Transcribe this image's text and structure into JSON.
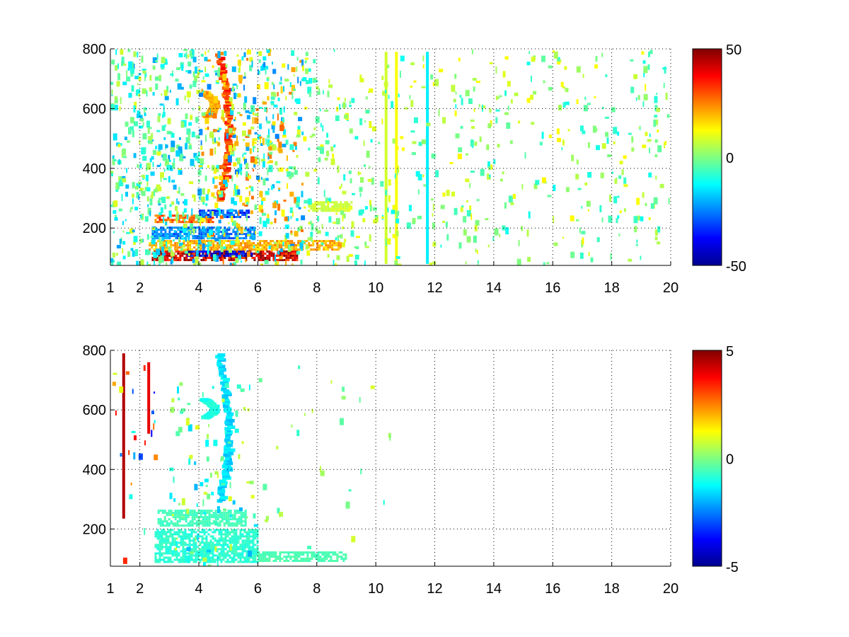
{
  "colors": {
    "background": "#ffffff",
    "colormap": "jet",
    "jet_stops": [
      "#00008f",
      "#0000ff",
      "#00ffff",
      "#ffff00",
      "#ff0000",
      "#800000"
    ],
    "grid": "#000000"
  },
  "chart_data": [
    {
      "type": "heatmap",
      "colormap": "jet",
      "title": "",
      "xlabel": "",
      "ylabel": "",
      "xlim": [
        1,
        20
      ],
      "ylim": [
        75,
        800
      ],
      "x_ticks": [
        1,
        2,
        4,
        6,
        8,
        10,
        12,
        14,
        16,
        18,
        20
      ],
      "x_tick_labels": [
        "1",
        "2",
        "4",
        "6",
        "8",
        "10",
        "12",
        "14",
        "16",
        "18",
        "20"
      ],
      "y_ticks": [
        200,
        400,
        600,
        800
      ],
      "y_tick_labels": [
        "200",
        "400",
        "600",
        "800"
      ],
      "grid": true,
      "clim": [
        -50,
        50
      ],
      "colorbar_ticks": [
        50,
        0,
        -50
      ],
      "colorbar_tick_labels": [
        "50",
        "0",
        "-50"
      ],
      "features": [
        {
          "kind": "band",
          "x": [
            2.4,
            7.3
          ],
          "y": [
            95,
            125
          ],
          "value": 42
        },
        {
          "kind": "band",
          "x": [
            3.6,
            5.8
          ],
          "y": [
            105,
            125
          ],
          "value": -42
        },
        {
          "kind": "band",
          "x": [
            2.3,
            8.8
          ],
          "y": [
            130,
            160
          ],
          "value": 20
        },
        {
          "kind": "band",
          "x": [
            2.4,
            5.9
          ],
          "y": [
            165,
            205
          ],
          "value": -25
        },
        {
          "kind": "band",
          "x": [
            2.5,
            4.5
          ],
          "y": [
            220,
            245
          ],
          "value": 28
        },
        {
          "kind": "band",
          "x": [
            4.0,
            5.7
          ],
          "y": [
            240,
            262
          ],
          "value": -30
        },
        {
          "kind": "band",
          "x": [
            7.7,
            9.2
          ],
          "y": [
            255,
            290
          ],
          "value": 8
        },
        {
          "kind": "ridge",
          "x": [
            4.4,
            5.0
          ],
          "y": [
            300,
            790
          ],
          "value": 32
        },
        {
          "kind": "ridge",
          "x": [
            3.9,
            4.5
          ],
          "y": [
            580,
            660
          ],
          "value": 22
        },
        {
          "kind": "vline",
          "x": 11.75,
          "y": [
            80,
            790
          ],
          "value": -14
        },
        {
          "kind": "vline",
          "x": 10.35,
          "y": [
            80,
            790
          ],
          "value": 8
        },
        {
          "kind": "vline",
          "x": 10.7,
          "y": [
            80,
            790
          ],
          "value": 12
        },
        {
          "kind": "speckle",
          "x": [
            1,
            4
          ],
          "y": [
            80,
            800
          ],
          "value_range": [
            -22,
            10
          ],
          "density": 0.45
        },
        {
          "kind": "speckle",
          "x": [
            4,
            7.5
          ],
          "y": [
            80,
            800
          ],
          "value_range": [
            -25,
            28
          ],
          "density": 0.45
        },
        {
          "kind": "speckle",
          "x": [
            7.5,
            10
          ],
          "y": [
            80,
            800
          ],
          "value_range": [
            -12,
            12
          ],
          "density": 0.2
        },
        {
          "kind": "speckle",
          "x": [
            10,
            20
          ],
          "y": [
            80,
            800
          ],
          "value_range": [
            -12,
            14
          ],
          "density": 0.12
        }
      ]
    },
    {
      "type": "heatmap",
      "colormap": "jet",
      "title": "",
      "xlabel": "",
      "ylabel": "",
      "xlim": [
        1,
        20
      ],
      "ylim": [
        75,
        800
      ],
      "x_ticks": [
        1,
        2,
        4,
        6,
        8,
        10,
        12,
        14,
        16,
        18,
        20
      ],
      "x_tick_labels": [
        "1",
        "2",
        "4",
        "6",
        "8",
        "10",
        "12",
        "14",
        "16",
        "18",
        "20"
      ],
      "y_ticks": [
        200,
        400,
        600,
        800
      ],
      "y_tick_labels": [
        "200",
        "400",
        "600",
        "800"
      ],
      "grid": true,
      "clim": [
        -5,
        5
      ],
      "colorbar_ticks": [
        5,
        0,
        -5
      ],
      "colorbar_tick_labels": [
        "5",
        "0",
        "-5"
      ],
      "features": [
        {
          "kind": "band",
          "x": [
            2.5,
            6.0
          ],
          "y": [
            90,
            200
          ],
          "value": -0.8
        },
        {
          "kind": "band",
          "x": [
            6.0,
            9.0
          ],
          "y": [
            95,
            125
          ],
          "value": -0.5
        },
        {
          "kind": "band",
          "x": [
            2.6,
            5.6
          ],
          "y": [
            215,
            265
          ],
          "value": -0.6
        },
        {
          "kind": "ridge",
          "x": [
            4.4,
            5.0
          ],
          "y": [
            300,
            790
          ],
          "value": -1.6
        },
        {
          "kind": "ridge",
          "x": [
            3.9,
            4.5
          ],
          "y": [
            580,
            640
          ],
          "value": -1.0
        },
        {
          "kind": "vline",
          "x": 1.45,
          "y": [
            235,
            790
          ],
          "value": 4.5
        },
        {
          "kind": "vline",
          "x": 2.3,
          "y": [
            520,
            760
          ],
          "value": 4.0
        },
        {
          "kind": "speckle",
          "x": [
            1,
            2.5
          ],
          "y": [
            80,
            800
          ],
          "value_range": [
            -4,
            4
          ],
          "density": 0.05
        },
        {
          "kind": "speckle",
          "x": [
            3,
            6
          ],
          "y": [
            80,
            700
          ],
          "value_range": [
            -2,
            1
          ],
          "density": 0.12
        },
        {
          "kind": "speckle",
          "x": [
            6,
            10.5
          ],
          "y": [
            80,
            800
          ],
          "value_range": [
            -1,
            1
          ],
          "density": 0.02
        }
      ]
    }
  ]
}
